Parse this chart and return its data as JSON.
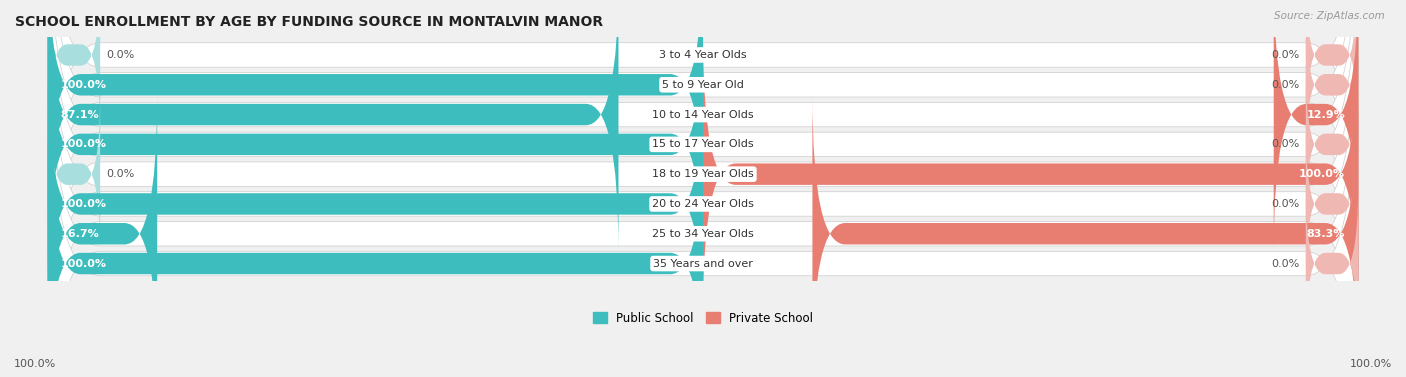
{
  "title": "SCHOOL ENROLLMENT BY AGE BY FUNDING SOURCE IN MONTALVIN MANOR",
  "source": "Source: ZipAtlas.com",
  "categories": [
    "3 to 4 Year Olds",
    "5 to 9 Year Old",
    "10 to 14 Year Olds",
    "15 to 17 Year Olds",
    "18 to 19 Year Olds",
    "20 to 24 Year Olds",
    "25 to 34 Year Olds",
    "35 Years and over"
  ],
  "public_values": [
    0.0,
    100.0,
    87.1,
    100.0,
    0.0,
    100.0,
    16.7,
    100.0
  ],
  "private_values": [
    0.0,
    0.0,
    12.9,
    0.0,
    100.0,
    0.0,
    83.3,
    0.0
  ],
  "public_color": "#3dbdbd",
  "public_color_light": "#a8dede",
  "private_color": "#e87e72",
  "private_color_light": "#f0b8b3",
  "public_label": "Public School",
  "private_label": "Private School",
  "background_color": "#f0f0f0",
  "row_bg_color": "#e8e8e8",
  "axis_label_left": "100.0%",
  "axis_label_right": "100.0%"
}
